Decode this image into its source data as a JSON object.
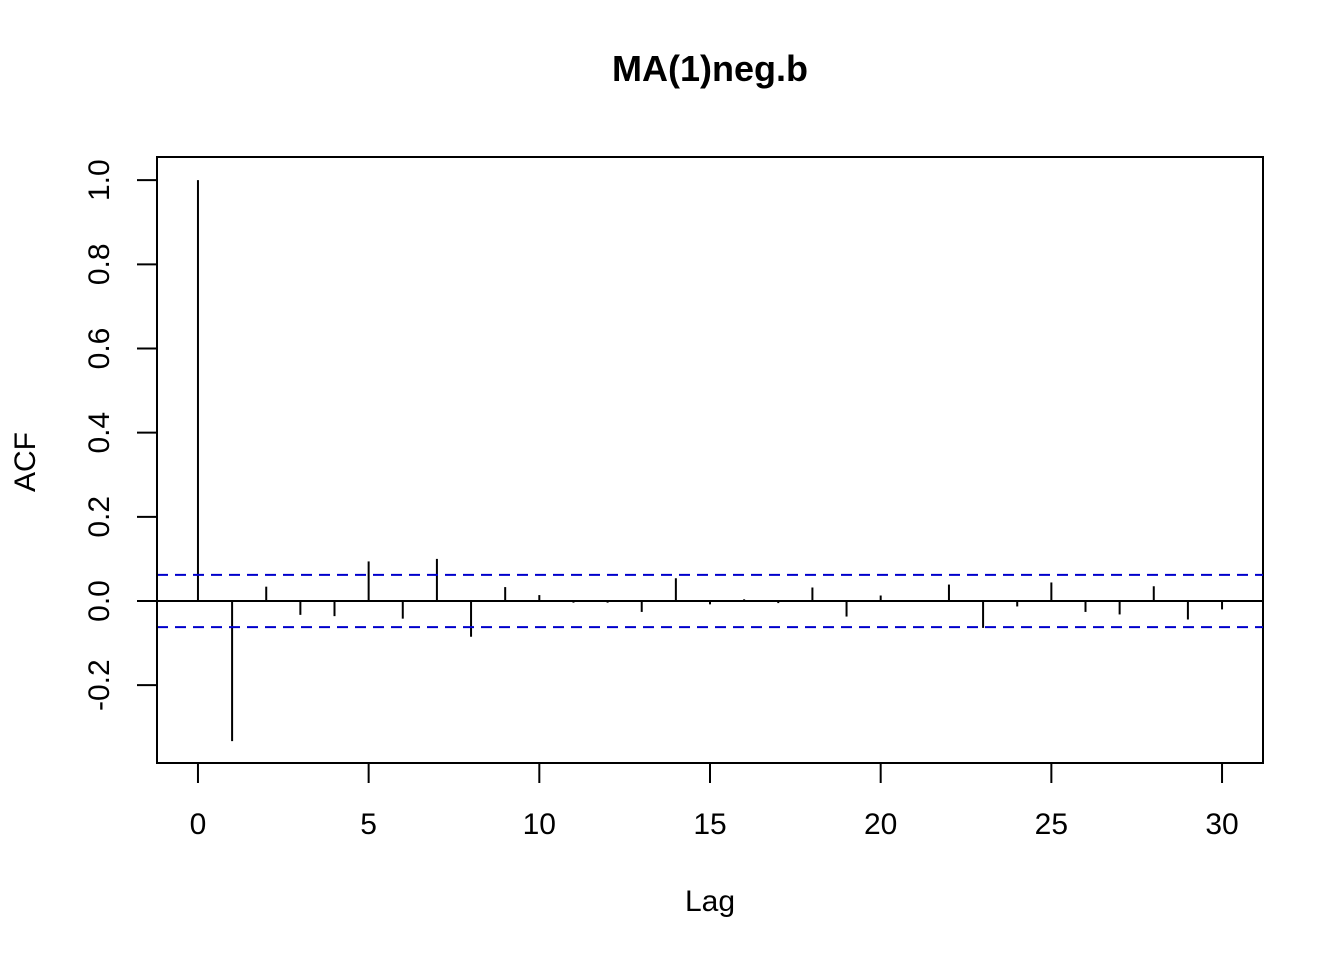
{
  "chart_data": {
    "type": "bar",
    "title": "MA(1)neg.b",
    "xlabel": "Lag",
    "ylabel": "ACF",
    "xlim": [
      -1.2,
      31.2
    ],
    "ylim": [
      -0.385,
      1.055
    ],
    "x_ticks": [
      "0",
      "5",
      "10",
      "15",
      "20",
      "25",
      "30"
    ],
    "y_ticks": [
      "-0.2",
      "0.0",
      "0.2",
      "0.4",
      "0.6",
      "0.8",
      "1.0"
    ],
    "confidence_bound": 0.062,
    "confidence_color": "#0000cc",
    "bar_color": "#000000",
    "grid": false,
    "lags": [
      0,
      1,
      2,
      3,
      4,
      5,
      6,
      7,
      8,
      9,
      10,
      11,
      12,
      13,
      14,
      15,
      16,
      17,
      18,
      19,
      20,
      21,
      22,
      23,
      24,
      25,
      26,
      27,
      28,
      29,
      30
    ],
    "values": [
      1.0,
      -0.333,
      0.034,
      -0.033,
      -0.036,
      0.094,
      -0.042,
      0.1,
      -0.085,
      0.033,
      0.014,
      -0.004,
      -0.004,
      -0.026,
      0.054,
      -0.008,
      0.004,
      -0.005,
      0.032,
      -0.037,
      0.013,
      -0.002,
      0.039,
      -0.064,
      -0.013,
      0.044,
      -0.026,
      -0.032,
      0.035,
      -0.044,
      -0.02
    ]
  }
}
